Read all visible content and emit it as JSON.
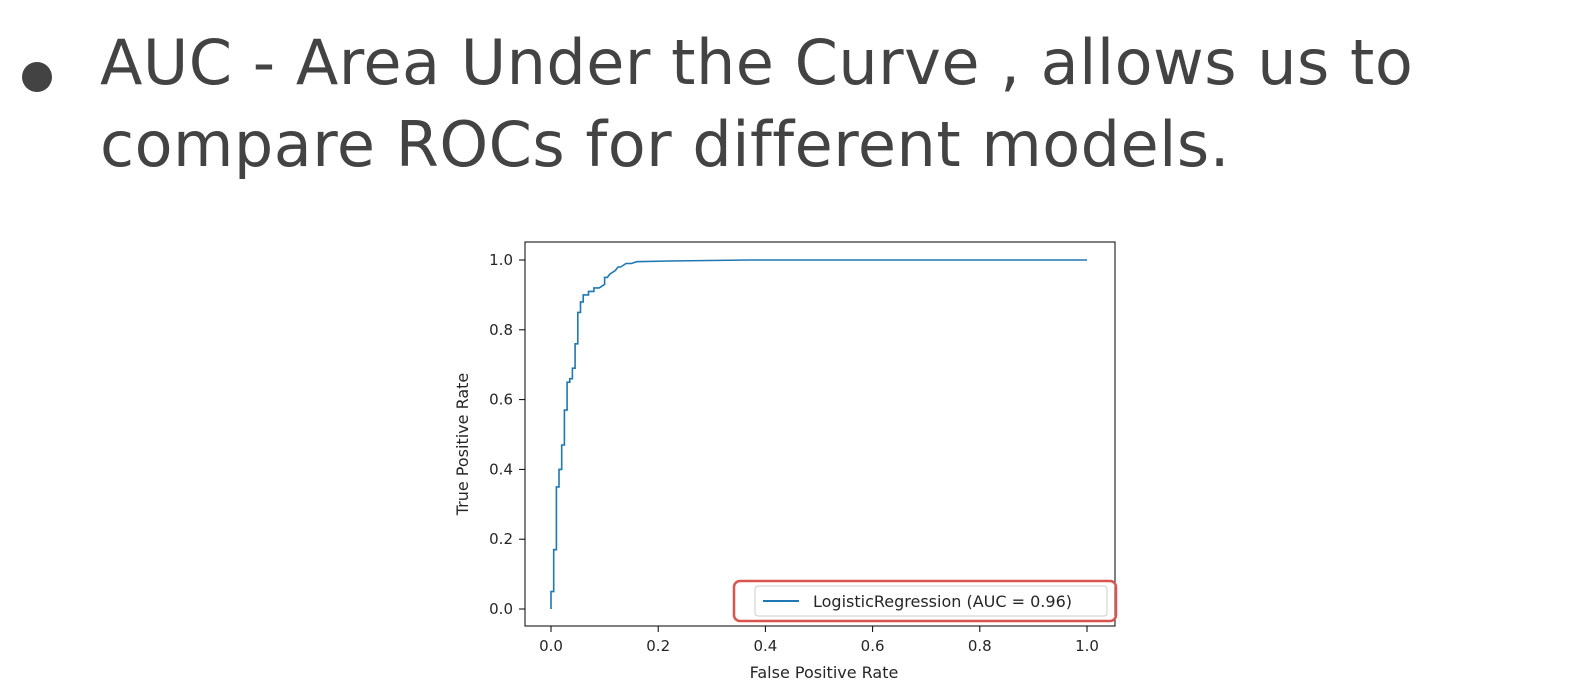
{
  "slide": {
    "bullet_text": "AUC - Area Under the Curve , allows us to compare ROCs for different models."
  },
  "colors": {
    "text": "#434343",
    "line": "#1f77b4",
    "highlight_box": "#d9534f",
    "axes": "#000000"
  },
  "chart_data": {
    "type": "line",
    "xlabel": "False Positive Rate",
    "ylabel": "True Positive Rate",
    "xlim": [
      0.0,
      1.0
    ],
    "ylim": [
      0.0,
      1.0
    ],
    "xticks": [
      "0.0",
      "0.2",
      "0.4",
      "0.6",
      "0.8",
      "1.0"
    ],
    "yticks": [
      "0.0",
      "0.2",
      "0.4",
      "0.6",
      "0.8",
      "1.0"
    ],
    "grid": false,
    "legend_position": "lower right",
    "legend_highlighted": true,
    "series": [
      {
        "name": "LogisticRegression (AUC = 0.96)",
        "x": [
          0.0,
          0.0,
          0.005,
          0.005,
          0.01,
          0.01,
          0.015,
          0.015,
          0.02,
          0.02,
          0.025,
          0.025,
          0.03,
          0.03,
          0.035,
          0.035,
          0.04,
          0.04,
          0.045,
          0.045,
          0.05,
          0.05,
          0.055,
          0.055,
          0.06,
          0.06,
          0.065,
          0.07,
          0.07,
          0.08,
          0.08,
          0.09,
          0.1,
          0.1,
          0.105,
          0.11,
          0.12,
          0.125,
          0.13,
          0.14,
          0.15,
          0.16,
          0.22,
          0.37,
          1.0
        ],
        "y": [
          0.0,
          0.05,
          0.05,
          0.17,
          0.17,
          0.35,
          0.35,
          0.4,
          0.4,
          0.47,
          0.47,
          0.57,
          0.57,
          0.65,
          0.65,
          0.66,
          0.66,
          0.69,
          0.69,
          0.76,
          0.76,
          0.85,
          0.85,
          0.88,
          0.88,
          0.9,
          0.9,
          0.9,
          0.91,
          0.91,
          0.92,
          0.92,
          0.93,
          0.95,
          0.95,
          0.96,
          0.97,
          0.98,
          0.98,
          0.99,
          0.99,
          0.995,
          0.997,
          1.0,
          1.0
        ]
      }
    ]
  }
}
